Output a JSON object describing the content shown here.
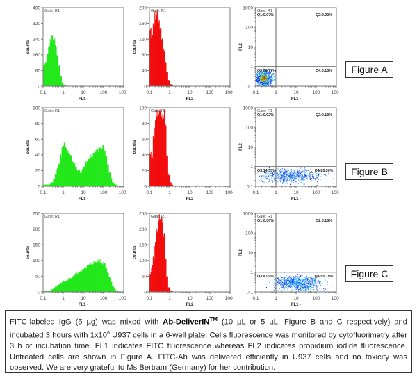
{
  "figure_labels": [
    "Figure A",
    "Figure B",
    "Figure C"
  ],
  "caption": {
    "p1": "FITC-labeled IgG (5 µg) was mixed with ",
    "brand": "Ab-DeliverIN",
    "tm": "TM",
    "p2": " (10 µL or 5 µL, Figure B and C respectively) and incubated 3 hours with 1x10",
    "exp": "6",
    "p3": " U937 cells in a 6-well plate. Cells fluorescence was monitored by cytofluorimetry after 3 h of incubation time. FL1 indicates FITC fluorescence whereas FL2 indicates propidium iodide fluorescence. Untreated cells are shown in Figure A. FITC-Ab was delivered efficiently in U937 cells and no toxicity was observed. We are very grateful to Ms Bertram (Germany) for her contribution."
  },
  "colors": {
    "fl1": "#22e81a",
    "fl2": "#f20c0c",
    "frame": "#777777"
  },
  "chart_data": [
    {
      "type": "bar",
      "figure": "A",
      "gate": "Gate: R1",
      "xlabel": "FL1 -",
      "ylabel": "counts",
      "xlim": [
        0.1,
        1000
      ],
      "xscale": "log",
      "ylim": [
        0,
        400
      ],
      "yticks": [
        "0",
        "80",
        "160",
        "240",
        "320",
        "400"
      ],
      "xticks": [
        "0.1",
        "1",
        "10",
        "100",
        "1000"
      ],
      "color": "#22e81a",
      "bins_per_decade": 12,
      "values": [
        110,
        120,
        160,
        200,
        230,
        250,
        230,
        200,
        150,
        100,
        50,
        20,
        8,
        3,
        0,
        0,
        0,
        0,
        0,
        0,
        0,
        0,
        0,
        0,
        0,
        0,
        0,
        0,
        0,
        0,
        0,
        0,
        0,
        0,
        0,
        0,
        0,
        0,
        0,
        0,
        0,
        0,
        0,
        0,
        0,
        0,
        0,
        0
      ]
    },
    {
      "type": "bar",
      "figure": "A",
      "gate": "Gate: R1",
      "xlabel": "FL2",
      "ylabel": "counts",
      "xlim": [
        0.1,
        1000
      ],
      "xscale": "log",
      "ylim": [
        0,
        200
      ],
      "yticks": [
        "0",
        "40",
        "80",
        "120",
        "160",
        "200"
      ],
      "xticks": [
        "0.1",
        "1",
        "10",
        "100",
        "1000"
      ],
      "color": "#f20c0c",
      "bins_per_decade": 12,
      "values": [
        140,
        130,
        160,
        180,
        185,
        170,
        150,
        120,
        90,
        60,
        35,
        15,
        5,
        2,
        0,
        0,
        0,
        0,
        0,
        0,
        0,
        0,
        0,
        0,
        0,
        0,
        0,
        0,
        0,
        0,
        0,
        0,
        0,
        0,
        0,
        0,
        0,
        0,
        0,
        0,
        0,
        0,
        0,
        0,
        0,
        0,
        0,
        0
      ]
    },
    {
      "type": "scatter",
      "figure": "A",
      "gate": "Gate: R1",
      "xlabel": "FL1 -",
      "ylabel": "FL2",
      "xlim": [
        0.1,
        1000
      ],
      "ylim": [
        0.1,
        1000
      ],
      "xticks": [
        "0.1",
        "1",
        "10",
        "100",
        "1000"
      ],
      "yticks": [
        "0.1",
        "1",
        "10",
        "100",
        "1000"
      ],
      "quadrants": {
        "Q1": "Q1:0.07%",
        "Q2": "Q2:0.00%",
        "Q3": "Q3:99.77%",
        "Q4": "Q4:0.13%"
      },
      "cluster": {
        "fl1_center": 0.25,
        "fl1_spread_decades": 0.22,
        "fl2_center": 0.25,
        "fl2_spread_decades": 0.2,
        "density": "high"
      }
    },
    {
      "type": "bar",
      "figure": "B",
      "gate": "Gate: R1",
      "xlabel": "FL1 -",
      "ylabel": "counts",
      "xlim": [
        0.1,
        1000
      ],
      "xscale": "log",
      "ylim": [
        0,
        100
      ],
      "yticks": [
        "0",
        "20",
        "40",
        "60",
        "80",
        "100"
      ],
      "xticks": [
        "0.1",
        "1",
        "10",
        "100",
        "1000"
      ],
      "color": "#22e81a",
      "bins_per_decade": 12,
      "values": [
        2,
        2,
        2,
        2,
        3,
        5,
        10,
        15,
        22,
        28,
        38,
        48,
        52,
        48,
        45,
        42,
        38,
        33,
        28,
        24,
        20,
        20,
        18,
        22,
        25,
        30,
        33,
        36,
        38,
        40,
        42,
        45,
        46,
        48,
        50,
        50,
        46,
        38,
        28,
        18,
        10,
        5,
        3,
        2,
        1,
        0,
        0,
        0
      ]
    },
    {
      "type": "bar",
      "figure": "B",
      "gate": "Gate: R1",
      "xlabel": "FL2",
      "ylabel": "counts",
      "xlim": [
        0.1,
        1000
      ],
      "xscale": "log",
      "ylim": [
        0,
        100
      ],
      "yticks": [
        "0",
        "20",
        "40",
        "60",
        "80",
        "100"
      ],
      "xticks": [
        "0.1",
        "1",
        "10",
        "100",
        "1000"
      ],
      "color": "#f20c0c",
      "bins_per_decade": 12,
      "values": [
        42,
        38,
        60,
        80,
        92,
        92,
        92,
        92,
        92,
        75,
        40,
        15,
        5,
        2,
        1,
        0,
        0,
        0,
        0,
        0,
        0,
        0,
        0,
        0,
        0,
        0,
        0,
        0,
        1,
        0,
        0,
        0,
        0,
        0,
        0,
        0,
        0,
        1,
        0,
        0,
        0,
        0,
        0,
        0,
        0,
        0,
        0,
        0
      ]
    },
    {
      "type": "scatter",
      "figure": "B",
      "gate": "Gate: R1",
      "xlabel": "FL1 -",
      "ylabel": "FL2",
      "xlim": [
        0.1,
        1000
      ],
      "ylim": [
        0.1,
        1000
      ],
      "xticks": [
        "0.1",
        "1",
        "10",
        "100",
        "1000"
      ],
      "yticks": [
        "0.1",
        "1",
        "10",
        "100",
        "1000"
      ],
      "quadrants": {
        "Q1": "Q1:0.02%",
        "Q2": "Q2:0.13%",
        "Q3": "Q3:14.55%",
        "Q4": "Q4:85.30%"
      },
      "cluster": {
        "fl1_center": 5,
        "fl1_spread_decades": 0.75,
        "fl2_center": 0.35,
        "fl2_spread_decades": 0.18,
        "density": "medium"
      }
    },
    {
      "type": "bar",
      "figure": "C",
      "gate": "Gate: R1",
      "xlabel": "FL1 -",
      "ylabel": "counts",
      "xlim": [
        0.1,
        1000
      ],
      "xscale": "log",
      "ylim": [
        0,
        250
      ],
      "yticks": [
        "0",
        "50",
        "100",
        "150",
        "200",
        "250"
      ],
      "xticks": [
        "0.1",
        "1",
        "10",
        "100",
        "1000"
      ],
      "color": "#22e81a",
      "bins_per_decade": 12,
      "values": [
        2,
        2,
        2,
        2,
        3,
        8,
        12,
        16,
        20,
        24,
        28,
        30,
        33,
        36,
        38,
        42,
        45,
        48,
        52,
        55,
        58,
        62,
        65,
        70,
        75,
        78,
        82,
        85,
        88,
        92,
        95,
        97,
        100,
        98,
        95,
        90,
        85,
        75,
        60,
        45,
        30,
        18,
        10,
        5,
        2,
        0,
        0,
        0
      ]
    },
    {
      "type": "bar",
      "figure": "C",
      "gate": "Gate: R1",
      "xlabel": "FL2",
      "ylabel": "counts",
      "xlim": [
        0.1,
        1000
      ],
      "xscale": "log",
      "ylim": [
        0,
        250
      ],
      "yticks": [
        "0",
        "50",
        "100",
        "150",
        "200",
        "250"
      ],
      "xticks": [
        "0.1",
        "1",
        "10",
        "100",
        "1000"
      ],
      "color": "#f20c0c",
      "bins_per_decade": 12,
      "values": [
        60,
        80,
        110,
        150,
        200,
        232,
        232,
        232,
        180,
        110,
        50,
        15,
        5,
        2,
        0,
        0,
        0,
        0,
        0,
        0,
        0,
        0,
        0,
        0,
        0,
        0,
        0,
        0,
        0,
        0,
        0,
        0,
        0,
        0,
        0,
        0,
        0,
        0,
        0,
        0,
        0,
        0,
        0,
        0,
        0,
        0,
        0,
        0
      ]
    },
    {
      "type": "scatter",
      "figure": "C",
      "gate": "Gate: R1",
      "xlabel": "FL1 -",
      "ylabel": "FL2",
      "xlim": [
        0.1,
        1000
      ],
      "ylim": [
        0.1,
        1000
      ],
      "xticks": [
        "0.1",
        "1",
        "10",
        "100",
        "1000"
      ],
      "yticks": [
        "0.1",
        "1",
        "10",
        "100",
        "1000"
      ],
      "quadrants": {
        "Q1": "Q1:0.00%",
        "Q2": "Q2:0.13%",
        "Q3": "Q3:4.09%",
        "Q4": "Q4:95.79%"
      },
      "cluster": {
        "fl1_center": 12,
        "fl1_spread_decades": 0.55,
        "fl2_center": 0.3,
        "fl2_spread_decades": 0.17,
        "density": "high"
      }
    }
  ]
}
